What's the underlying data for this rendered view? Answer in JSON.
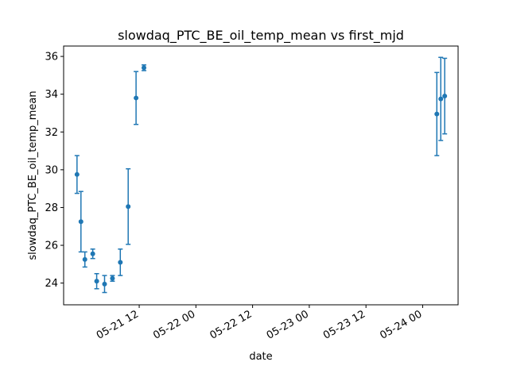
{
  "chart_data": {
    "type": "scatter",
    "title": "slowdaq_PTC_BE_oil_temp_mean vs first_mjd",
    "xlabel": "date",
    "ylabel": "slowdaq_PTC_BE_oil_temp_mean",
    "xlim": [
      "2024-05-20 20:00",
      "2024-05-24 07:30"
    ],
    "ylim": [
      22.85,
      36.55
    ],
    "x_ticks": [
      {
        "value": "2024-05-21 12:00",
        "label": "05-21 12"
      },
      {
        "value": "2024-05-22 00:00",
        "label": "05-22 00"
      },
      {
        "value": "2024-05-22 12:00",
        "label": "05-22 12"
      },
      {
        "value": "2024-05-23 00:00",
        "label": "05-23 00"
      },
      {
        "value": "2024-05-23 12:00",
        "label": "05-23 12"
      },
      {
        "value": "2024-05-24 00:00",
        "label": "05-24 00"
      }
    ],
    "y_ticks": [
      24,
      26,
      28,
      30,
      32,
      34,
      36
    ],
    "grid": false,
    "marker_color": "#1f77b4",
    "points": [
      {
        "x": "2024-05-20 22:50",
        "y": 29.75,
        "err": 1.0
      },
      {
        "x": "2024-05-20 23:40",
        "y": 27.25,
        "err": 1.6
      },
      {
        "x": "2024-05-21 00:30",
        "y": 25.25,
        "err": 0.4
      },
      {
        "x": "2024-05-21 02:10",
        "y": 25.55,
        "err": 0.25
      },
      {
        "x": "2024-05-21 03:00",
        "y": 24.1,
        "err": 0.4
      },
      {
        "x": "2024-05-21 04:40",
        "y": 23.95,
        "err": 0.45
      },
      {
        "x": "2024-05-21 06:20",
        "y": 24.25,
        "err": 0.15
      },
      {
        "x": "2024-05-21 08:00",
        "y": 25.1,
        "err": 0.7
      },
      {
        "x": "2024-05-21 09:40",
        "y": 28.05,
        "err": 2.0
      },
      {
        "x": "2024-05-21 11:20",
        "y": 33.8,
        "err": 1.4
      },
      {
        "x": "2024-05-21 13:00",
        "y": 35.4,
        "err": 0.15
      },
      {
        "x": "2024-05-24 03:00",
        "y": 32.95,
        "err": 2.2
      },
      {
        "x": "2024-05-24 03:50",
        "y": 33.75,
        "err": 2.2
      },
      {
        "x": "2024-05-24 04:40",
        "y": 33.9,
        "err": 2.0
      }
    ]
  }
}
